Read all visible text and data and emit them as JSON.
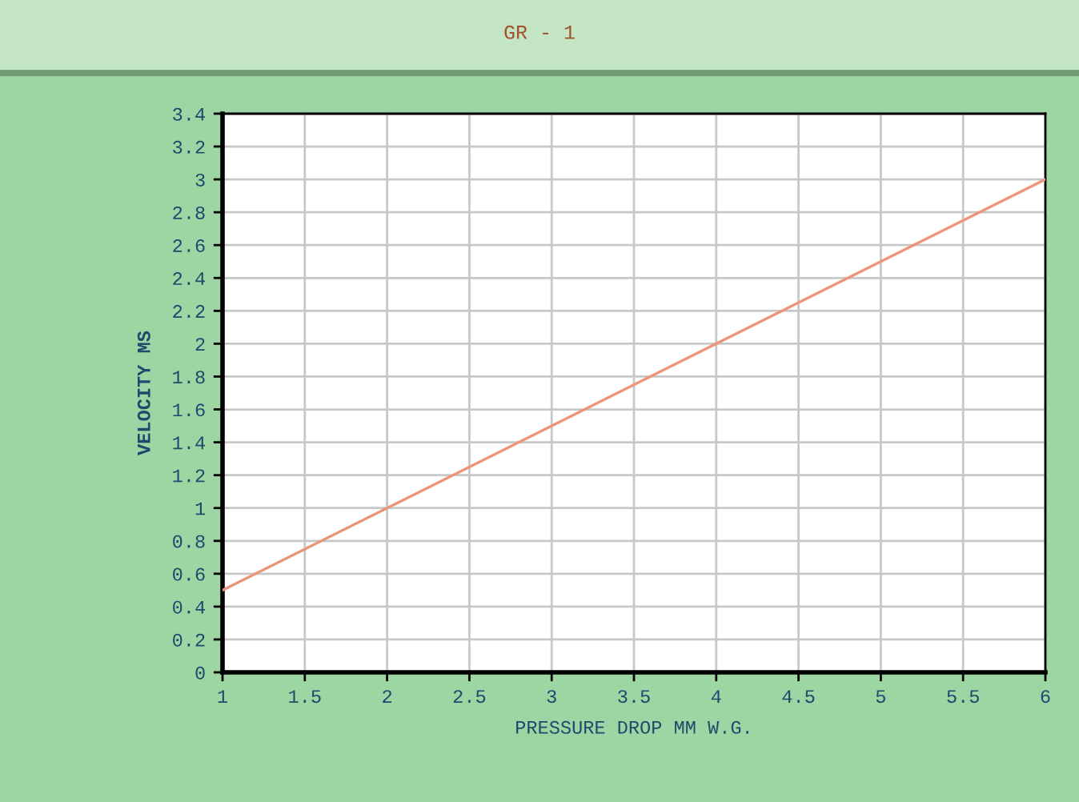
{
  "chart_data": {
    "type": "line",
    "title": "GR - 1",
    "xlabel": "PRESSURE DROP MM W.G.",
    "ylabel": "VELOCITY MS",
    "x": [
      1,
      6
    ],
    "values": [
      0.5,
      3
    ],
    "color": "#e9967a",
    "xlim": [
      1,
      6
    ],
    "ylim": [
      0,
      3.4
    ],
    "xticks": [
      1,
      1.5,
      2,
      2.5,
      3,
      3.5,
      4,
      4.5,
      5,
      5.5,
      6
    ],
    "yticks": [
      0,
      0.2,
      0.4,
      0.6,
      0.8,
      1,
      1.2,
      1.4,
      1.6,
      1.8,
      2,
      2.2,
      2.4,
      2.6,
      2.8,
      3,
      3.2,
      3.4
    ],
    "grid": true,
    "marker": "none",
    "line_style": "solid"
  }
}
